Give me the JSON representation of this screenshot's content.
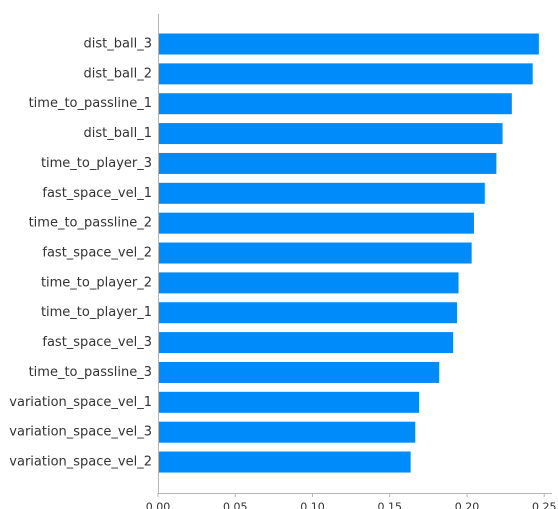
{
  "chart_data": {
    "type": "bar",
    "orientation": "horizontal",
    "categories": [
      "dist_ball_3",
      "dist_ball_2",
      "time_to_passline_1",
      "dist_ball_1",
      "time_to_player_3",
      "fast_space_vel_1",
      "time_to_passline_2",
      "fast_space_vel_2",
      "time_to_player_2",
      "time_to_player_1",
      "fast_space_vel_3",
      "time_to_passline_3",
      "variation_space_vel_1",
      "variation_space_vel_3",
      "variation_space_vel_2"
    ],
    "values": [
      0.2465,
      0.2425,
      0.229,
      0.223,
      0.219,
      0.2115,
      0.2045,
      0.203,
      0.1945,
      0.1935,
      0.191,
      0.182,
      0.169,
      0.1665,
      0.1635
    ],
    "xlim": [
      0,
      0.255
    ],
    "xticks": [
      "0.00",
      "0.05",
      "0.10",
      "0.15",
      "0.20",
      "0.25"
    ],
    "xtick_values": [
      0,
      0.05,
      0.1,
      0.15,
      0.2,
      0.25
    ],
    "bar_color": "#008bfb",
    "axis_color": "#b5b5b5",
    "grid": false,
    "title": "",
    "xlabel": "",
    "ylabel": ""
  }
}
